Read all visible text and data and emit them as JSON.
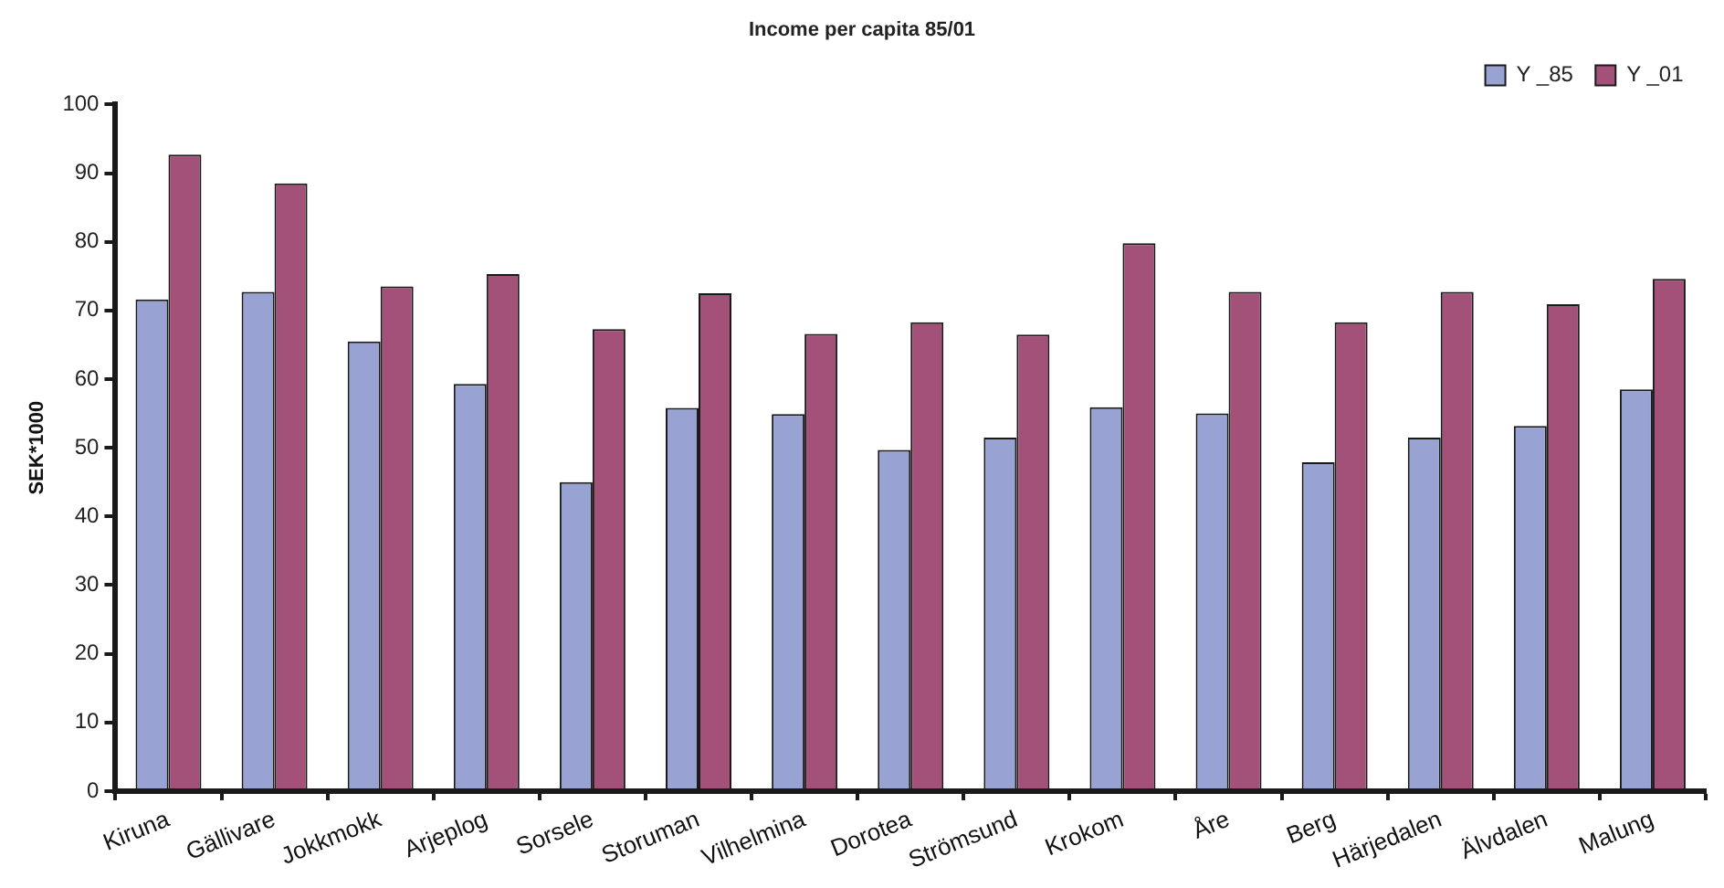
{
  "chart_data": {
    "type": "bar",
    "title": "Income per capita 85/01",
    "ylabel": "SEK*1000",
    "categories": [
      "Kiruna",
      "Gällivare",
      "Jokkmokk",
      "Arjeplog",
      "Sorsele",
      "Storuman",
      "Vilhelmina",
      "Dorotea",
      "Strömsund",
      "Krokom",
      "Åre",
      "Berg",
      "Härjedalen",
      "Älvdalen",
      "Malung"
    ],
    "series": [
      {
        "name": "Y _85",
        "color": "#99a3d3",
        "values": [
          71.6,
          72.7,
          65.5,
          59.3,
          45,
          55.8,
          54.9,
          49.7,
          51.5,
          55.9,
          55,
          47.9,
          51.5,
          53.2,
          58.5
        ]
      },
      {
        "name": "Y _01",
        "color": "#a35178",
        "values": [
          92.7,
          88.5,
          73.5,
          75.3,
          67.3,
          72.5,
          66.6,
          68.3,
          66.5,
          79.8,
          72.7,
          68.3,
          72.7,
          70.9,
          74.6
        ]
      }
    ],
    "ylim": [
      0,
      100
    ],
    "yticks": [
      0,
      10,
      20,
      30,
      40,
      50,
      60,
      70,
      80,
      90,
      100
    ],
    "grid": false,
    "legend": "top right"
  }
}
